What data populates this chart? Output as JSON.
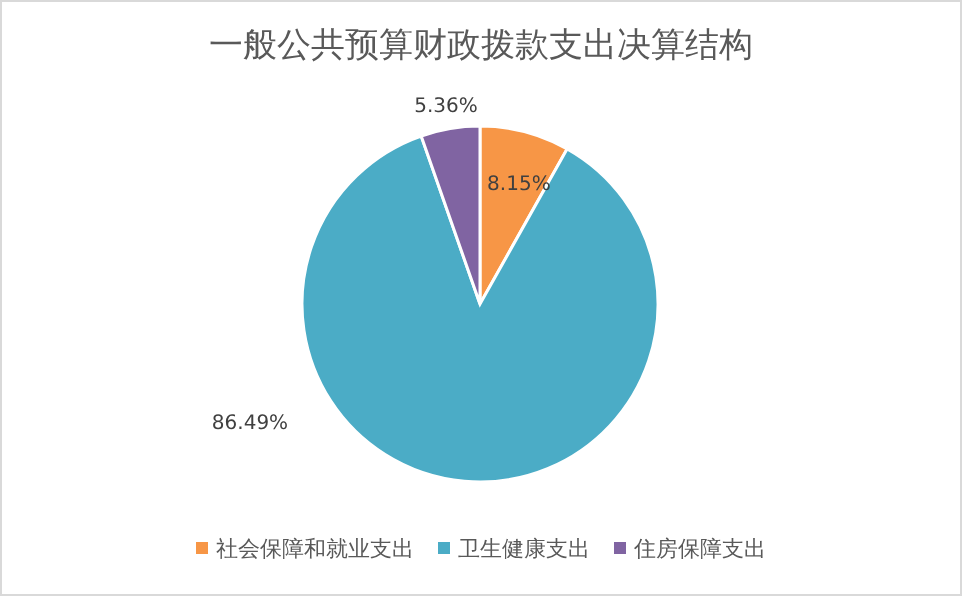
{
  "chart_data": {
    "type": "pie",
    "title": "一般公共预算财政拨款支出决算结构",
    "categories": [
      "社会保障和就业支出",
      "卫生健康支出",
      "住房保障支出"
    ],
    "values": [
      8.15,
      86.49,
      5.36
    ],
    "colors": [
      "#f79646",
      "#4bacc6",
      "#8064a2"
    ],
    "value_labels": [
      "8.15%",
      "86.49%",
      "5.36%"
    ],
    "legend": "bottom"
  }
}
